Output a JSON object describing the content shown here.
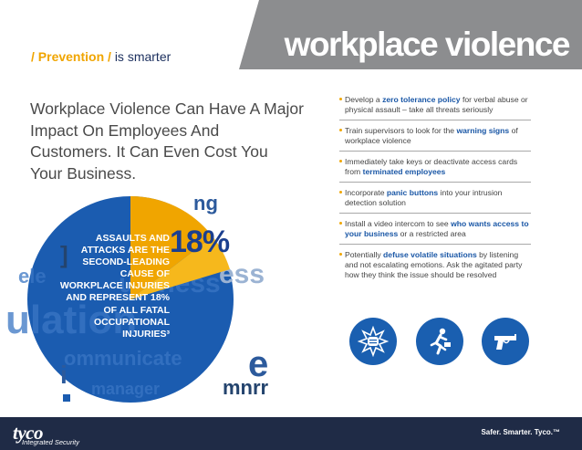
{
  "header": {
    "title": "workplace violence",
    "tagline_slash_open": "/ Prevention /",
    "tagline_rest": "is smarter"
  },
  "headline": "Workplace Violence Can Have A Major Impact On Employees And Customers. It Can Even Cost You Your Business.",
  "stat": {
    "percent": "18%",
    "text": "ASSAULTS AND ATTACKS ARE THE SECOND-LEADING CAUSE OF WORKPLACE INJURIES AND REPRESENT 18% OF ALL FATAL OCCUPATIONAL INJURIES³"
  },
  "bullets": [
    {
      "pre": "Develop a ",
      "bold": "zero tolerance policy",
      "post": " for verbal abuse or physical assault – take all threats seriously"
    },
    {
      "pre": "Train supervisors to look for the ",
      "bold": "warning signs",
      "post": " of workplace violence"
    },
    {
      "pre": "Immediately take keys or deactivate access cards from ",
      "bold": "terminated employees",
      "post": ""
    },
    {
      "pre": "Incorporate ",
      "bold": "panic buttons",
      "post": " into your intrusion detection solution"
    },
    {
      "pre": "Install a video intercom to see ",
      "bold": "who wants access to your business",
      "post": " or a restricted area"
    },
    {
      "pre": "Potentially ",
      "bold": "defuse volatile situations",
      "post": " by listening and not escalating emotions. Ask the agitated party how they think the issue should be resolved"
    }
  ],
  "icons": [
    "fist-impact-icon",
    "running-person-icon",
    "handgun-icon"
  ],
  "footer": {
    "logo": "tyco",
    "logo_sub": "Integrated Security",
    "slogan": "Safer. Smarter. Tyco.™"
  },
  "colors": {
    "accent_orange": "#f0a500",
    "navy": "#1b2f5e",
    "blue": "#1a5fb0",
    "grey_band": "#8c8d8f",
    "footer": "#1f2b46"
  }
}
